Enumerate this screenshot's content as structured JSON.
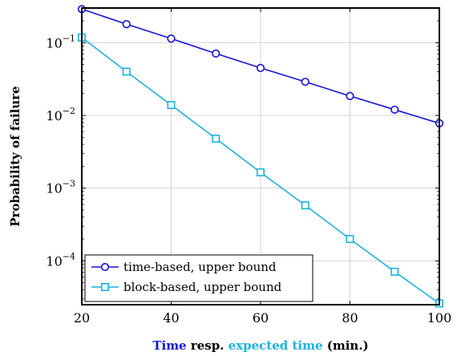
{
  "chart_data": {
    "type": "line",
    "x_scale": "linear",
    "y_scale": "log",
    "xlim": [
      20,
      100
    ],
    "ylim": [
      2.5e-05,
      0.3
    ],
    "x_ticks": [
      20,
      40,
      60,
      80,
      100
    ],
    "x_tick_labels": [
      "20",
      "40",
      "60",
      "80",
      "100"
    ],
    "y_ticks": [
      0.0001,
      0.001,
      0.01,
      0.1
    ],
    "y_tick_labels": [
      {
        "base": "10",
        "exp": "−4"
      },
      {
        "base": "10",
        "exp": "−3"
      },
      {
        "base": "10",
        "exp": "−2"
      },
      {
        "base": "10",
        "exp": "−1"
      }
    ],
    "grid": true,
    "legend_position": "bottom-left",
    "ylabel": "Probability of failure",
    "xlabel_parts": [
      {
        "text": "Time",
        "color": "#1414d2"
      },
      {
        "text": " resp. ",
        "color": "#000000"
      },
      {
        "text": "expected time",
        "color": "#1ab2e0"
      },
      {
        "text": " (min.)",
        "color": "#000000"
      }
    ],
    "series": [
      {
        "name": "time-based, upper bound",
        "color": "#1414d2",
        "marker": "circle",
        "x": [
          20,
          30,
          40,
          50,
          60,
          70,
          80,
          90,
          100
        ],
        "y": [
          0.29,
          0.18,
          0.114,
          0.071,
          0.045,
          0.029,
          0.0185,
          0.012,
          0.0078
        ]
      },
      {
        "name": "block-based, upper bound",
        "color": "#1ab2e0",
        "marker": "square",
        "x": [
          20,
          30,
          40,
          50,
          60,
          70,
          80,
          90,
          100
        ],
        "y": [
          0.118,
          0.04,
          0.0139,
          0.0048,
          0.00165,
          0.00058,
          0.0002,
          7.1e-05,
          2.6e-05
        ]
      }
    ]
  }
}
